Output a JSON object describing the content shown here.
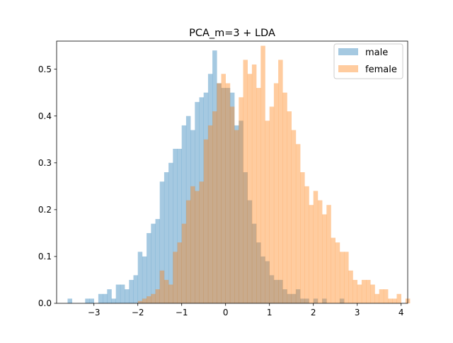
{
  "chart_data": {
    "type": "histogram",
    "title": "PCA_m=3 + LDA",
    "xlabel": "",
    "ylabel": "",
    "xlim": [
      -3.85,
      4.15
    ],
    "ylim": [
      0,
      0.56
    ],
    "xticks": [
      "−3",
      "−2",
      "−1",
      "0",
      "1",
      "2",
      "3",
      "4"
    ],
    "xtick_values": [
      -3,
      -2,
      -1,
      0,
      1,
      2,
      3,
      4
    ],
    "yticks": [
      "0.0",
      "0.1",
      "0.2",
      "0.3",
      "0.4",
      "0.5"
    ],
    "ytick_values": [
      0,
      0.1,
      0.2,
      0.3,
      0.4,
      0.5
    ],
    "grid": false,
    "legend_position": "top-right",
    "bin_width": 0.1,
    "series": [
      {
        "name": "male",
        "color": "#1f77b4",
        "alpha": 0.4,
        "bins_start": -3.6,
        "heights": [
          0.01,
          0.0,
          0.0,
          0.0,
          0.01,
          0.01,
          0.0,
          0.02,
          0.02,
          0.03,
          0.01,
          0.04,
          0.04,
          0.03,
          0.05,
          0.06,
          0.11,
          0.1,
          0.15,
          0.17,
          0.18,
          0.26,
          0.28,
          0.3,
          0.33,
          0.33,
          0.38,
          0.4,
          0.37,
          0.43,
          0.44,
          0.45,
          0.49,
          0.54,
          0.47,
          0.46,
          0.46,
          0.45,
          0.38,
          0.39,
          0.28,
          0.22,
          0.17,
          0.13,
          0.1,
          0.09,
          0.06,
          0.05,
          0.05,
          0.03,
          0.02,
          0.02,
          0.03,
          0.01,
          0.01,
          0.0,
          0.01,
          0.0,
          0.01,
          0.0,
          0.0,
          0.0,
          0.01
        ]
      },
      {
        "name": "female",
        "color": "#ff7f0e",
        "alpha": 0.4,
        "bins_start": -2.0,
        "heights": [
          0.005,
          0.01,
          0.015,
          0.02,
          0.03,
          0.07,
          0.05,
          0.04,
          0.11,
          0.13,
          0.17,
          0.22,
          0.25,
          0.24,
          0.26,
          0.35,
          0.38,
          0.41,
          0.47,
          0.49,
          0.47,
          0.42,
          0.37,
          0.44,
          0.52,
          0.49,
          0.51,
          0.46,
          0.55,
          0.39,
          0.42,
          0.47,
          0.52,
          0.45,
          0.41,
          0.37,
          0.34,
          0.28,
          0.25,
          0.21,
          0.24,
          0.22,
          0.19,
          0.21,
          0.14,
          0.13,
          0.11,
          0.11,
          0.07,
          0.05,
          0.04,
          0.05,
          0.05,
          0.04,
          0.02,
          0.03,
          0.03,
          0.01,
          0.01,
          0.02,
          0.0,
          0.01,
          0.0,
          0.0,
          0.0,
          0.0,
          0.0,
          0.0,
          0.0,
          0.0,
          0.0,
          0.0,
          0.0,
          0.0,
          0.0,
          0.0,
          0.0,
          0.0,
          0.005
        ]
      }
    ]
  }
}
